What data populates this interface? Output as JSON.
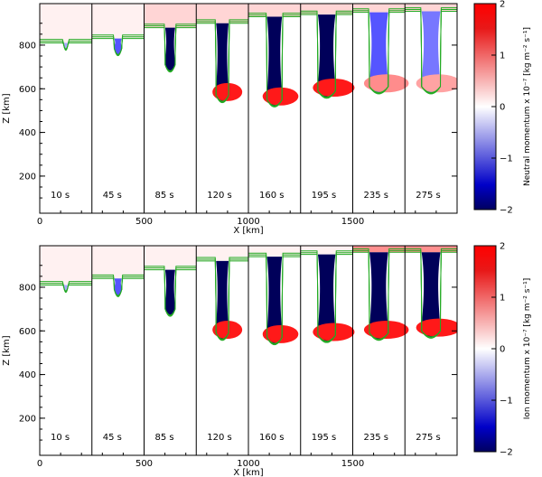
{
  "chart_data": [
    {
      "type": "heatmap",
      "panel": "top",
      "quantity": "Neutral momentum",
      "colorbar_label": "Neutral momentum x 10⁻⁷ [kg m⁻² s⁻¹]",
      "colorbar_ticks": [
        -2,
        -1,
        0,
        1,
        2
      ],
      "clim": [
        -2,
        2
      ],
      "xlabel": "X [km]",
      "ylabel": "Z [km]",
      "xlim": [
        0,
        2000
      ],
      "ylim": [
        30,
        990
      ],
      "xticks": [
        0,
        500,
        1000,
        1500
      ],
      "yticks": [
        200,
        400,
        600,
        800
      ],
      "snapshots": [
        "10 s",
        "45 s",
        "85 s",
        "120 s",
        "160 s",
        "195 s",
        "235 s",
        "275 s"
      ],
      "snapshot_width_km": 250,
      "features": [
        {
          "time": "10 s",
          "interface_z_km": 810,
          "finger_tip_z_km": 800,
          "max_abs_value": 0.5
        },
        {
          "time": "45 s",
          "interface_z_km": 830,
          "finger_tip_z_km": 775,
          "max_abs_value": 1.0
        },
        {
          "time": "85 s",
          "interface_z_km": 880,
          "finger_tip_z_km": 700,
          "max_abs_value": 2.0
        },
        {
          "time": "120 s",
          "interface_z_km": 900,
          "finger_tip_z_km": 560,
          "max_abs_value": 2.0
        },
        {
          "time": "160 s",
          "interface_z_km": 930,
          "finger_tip_z_km": 540,
          "max_abs_value": 2.0
        },
        {
          "time": "195 s",
          "interface_z_km": 940,
          "finger_tip_z_km": 580,
          "max_abs_value": 2.0
        },
        {
          "time": "235 s",
          "interface_z_km": 950,
          "finger_tip_z_km": 600,
          "max_abs_value": 1.0
        },
        {
          "time": "275 s",
          "interface_z_km": 955,
          "finger_tip_z_km": 600,
          "max_abs_value": 0.8
        }
      ]
    },
    {
      "type": "heatmap",
      "panel": "bottom",
      "quantity": "Ion momentum",
      "colorbar_label": "Ion momentum x 10⁻⁷ [kg m⁻² s⁻¹]",
      "colorbar_ticks": [
        -2,
        -1,
        0,
        1,
        2
      ],
      "clim": [
        -2,
        2
      ],
      "xlabel": "X [km]",
      "ylabel": "Z [km]",
      "xlim": [
        0,
        2000
      ],
      "ylim": [
        30,
        990
      ],
      "xticks": [
        0,
        500,
        1000,
        1500
      ],
      "yticks": [
        200,
        400,
        600,
        800
      ],
      "snapshots": [
        "10 s",
        "45 s",
        "85 s",
        "120 s",
        "160 s",
        "195 s",
        "235 s",
        "275 s"
      ],
      "snapshot_width_km": 250,
      "features": [
        {
          "time": "10 s",
          "interface_z_km": 810,
          "finger_tip_z_km": 800,
          "max_abs_value": 0.5
        },
        {
          "time": "45 s",
          "interface_z_km": 840,
          "finger_tip_z_km": 780,
          "max_abs_value": 1.0
        },
        {
          "time": "85 s",
          "interface_z_km": 880,
          "finger_tip_z_km": 690,
          "max_abs_value": 2.0
        },
        {
          "time": "120 s",
          "interface_z_km": 920,
          "finger_tip_z_km": 580,
          "max_abs_value": 2.0
        },
        {
          "time": "160 s",
          "interface_z_km": 940,
          "finger_tip_z_km": 560,
          "max_abs_value": 2.0
        },
        {
          "time": "195 s",
          "interface_z_km": 950,
          "finger_tip_z_km": 570,
          "max_abs_value": 2.0
        },
        {
          "time": "235 s",
          "interface_z_km": 960,
          "finger_tip_z_km": 580,
          "max_abs_value": 2.0
        },
        {
          "time": "275 s",
          "interface_z_km": 960,
          "finger_tip_z_km": 590,
          "max_abs_value": 2.0
        }
      ]
    }
  ]
}
